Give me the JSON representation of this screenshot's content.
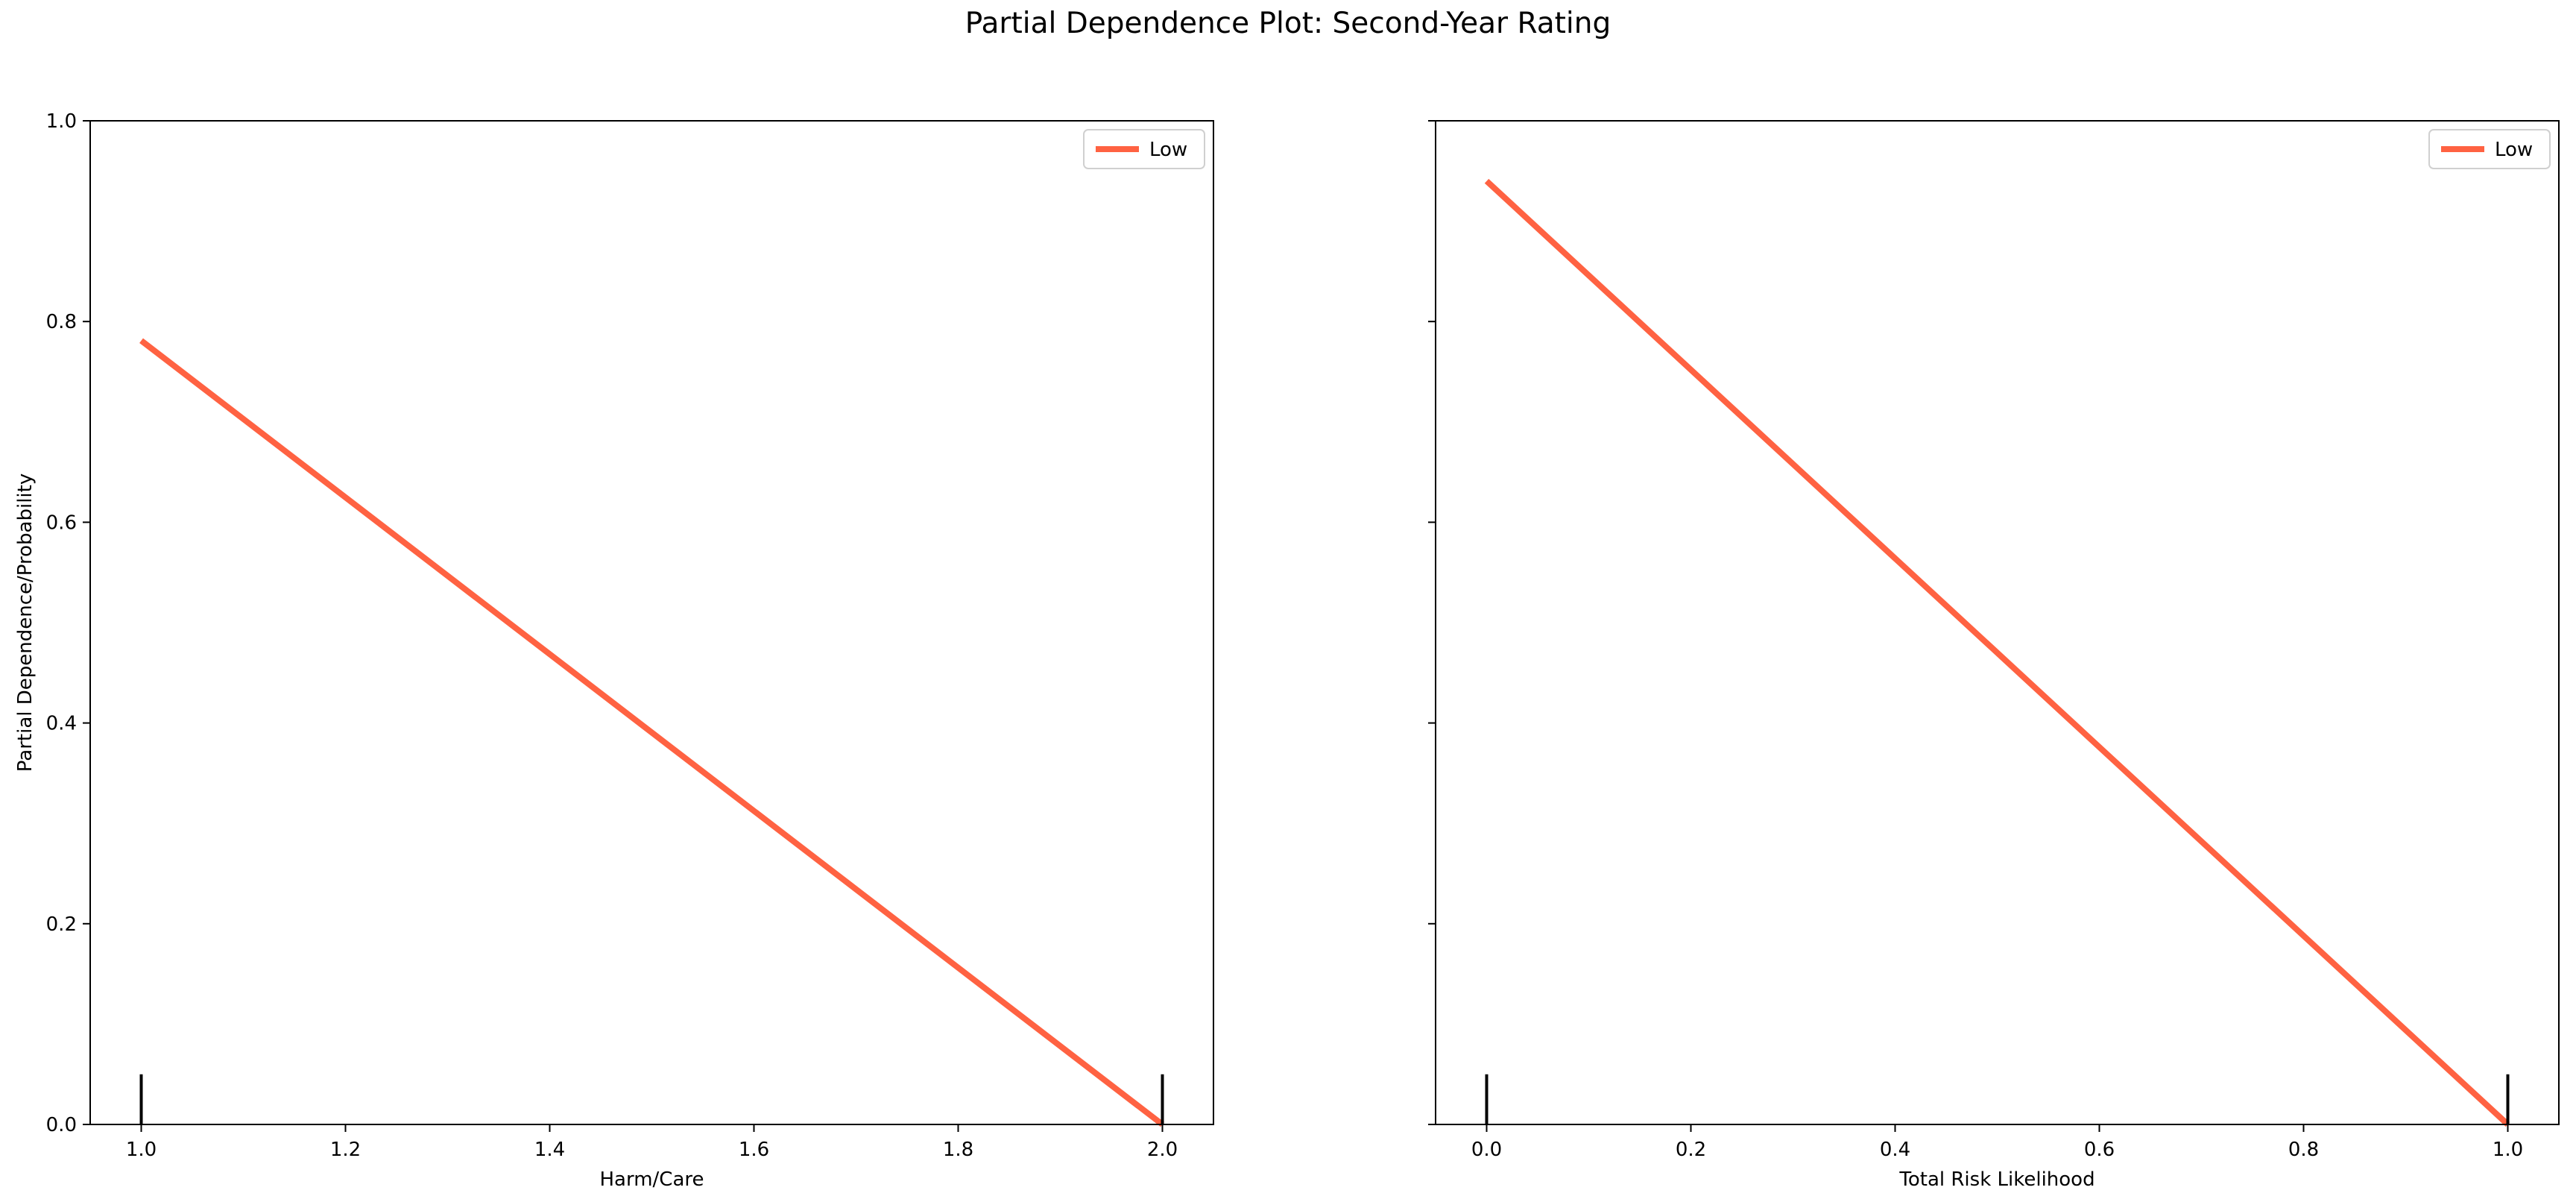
{
  "figure": {
    "title": "Partial Dependence Plot: Second-Year Rating"
  },
  "chart_data": [
    {
      "type": "line",
      "xlabel": "Harm/Care",
      "ylabel": "Partial Dependence/Probability",
      "xlim": [
        0.95,
        2.05
      ],
      "ylim": [
        0.0,
        1.0
      ],
      "xticks": [
        1.0,
        1.2,
        1.4,
        1.6,
        1.8,
        2.0
      ],
      "xtick_labels": [
        "1.0",
        "1.2",
        "1.4",
        "1.6",
        "1.8",
        "2.0"
      ],
      "yticks": [
        0.0,
        0.2,
        0.4,
        0.6,
        0.8,
        1.0
      ],
      "ytick_labels": [
        "0.0",
        "0.2",
        "0.4",
        "0.6",
        "0.8",
        "1.0"
      ],
      "show_yticklabels": true,
      "grid": false,
      "legend_position": "upper right",
      "series": [
        {
          "name": "Low",
          "color": "#ff6242",
          "x": [
            1.0,
            2.0
          ],
          "y": [
            0.781,
            0.0
          ]
        }
      ],
      "rug": {
        "x": [
          1.0,
          2.0
        ],
        "height": 0.05,
        "color": "#000000"
      }
    },
    {
      "type": "line",
      "xlabel": "Total Risk Likelihood",
      "ylabel": "",
      "xlim": [
        -0.05,
        1.05
      ],
      "ylim": [
        0.0,
        1.0
      ],
      "xticks": [
        0.0,
        0.2,
        0.4,
        0.6,
        0.8,
        1.0
      ],
      "xtick_labels": [
        "0.0",
        "0.2",
        "0.4",
        "0.6",
        "0.8",
        "1.0"
      ],
      "yticks": [
        0.0,
        0.2,
        0.4,
        0.6,
        0.8,
        1.0
      ],
      "ytick_labels": [],
      "show_yticklabels": false,
      "grid": false,
      "legend_position": "upper right",
      "series": [
        {
          "name": "Low",
          "color": "#ff6242",
          "x": [
            0.0,
            1.0
          ],
          "y": [
            0.94,
            0.0
          ]
        }
      ],
      "rug": {
        "x": [
          0.0,
          1.0
        ],
        "height": 0.05,
        "color": "#000000"
      }
    }
  ]
}
